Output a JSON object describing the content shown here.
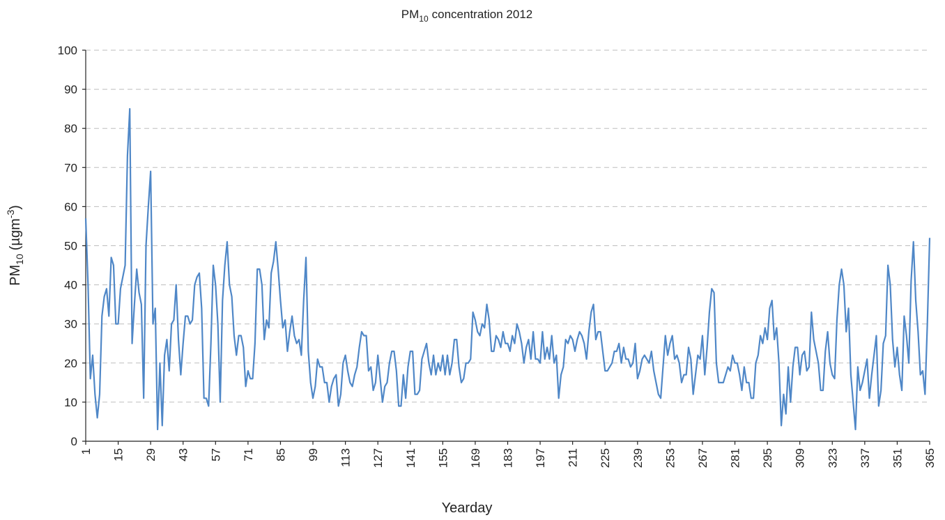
{
  "chart_data": {
    "type": "line",
    "title": {
      "main": "PM",
      "sub": "10",
      "rest": "concentration 2012"
    },
    "x_label": "Yearday",
    "y_label": {
      "main": "PM",
      "sub": "10",
      "rest": "(µgm",
      "sup": "-3",
      "end": ")"
    },
    "xlim": [
      1,
      365
    ],
    "ylim": [
      0,
      100
    ],
    "xticks": [
      1,
      15,
      29,
      43,
      57,
      71,
      85,
      99,
      113,
      127,
      141,
      155,
      169,
      183,
      197,
      211,
      225,
      239,
      253,
      267,
      281,
      295,
      309,
      323,
      337,
      351,
      365
    ],
    "yticks": [
      0,
      10,
      20,
      30,
      40,
      50,
      60,
      70,
      80,
      90,
      100
    ],
    "grid": true,
    "x": [
      1,
      2,
      3,
      4,
      5,
      6,
      7,
      8,
      9,
      10,
      11,
      12,
      13,
      14,
      15,
      16,
      17,
      18,
      19,
      20,
      21,
      22,
      23,
      24,
      25,
      26,
      27,
      28,
      29,
      30,
      31,
      32,
      33,
      34,
      35,
      36,
      37,
      38,
      39,
      40,
      41,
      42,
      43,
      44,
      45,
      46,
      47,
      48,
      49,
      50,
      51,
      52,
      53,
      54,
      55,
      56,
      57,
      58,
      59,
      60,
      61,
      62,
      63,
      64,
      65,
      66,
      67,
      68,
      69,
      70,
      71,
      72,
      73,
      74,
      75,
      76,
      77,
      78,
      79,
      80,
      81,
      82,
      83,
      84,
      85,
      86,
      87,
      88,
      89,
      90,
      91,
      92,
      93,
      94,
      95,
      96,
      97,
      98,
      99,
      100,
      101,
      102,
      103,
      104,
      105,
      106,
      107,
      108,
      109,
      110,
      111,
      112,
      113,
      114,
      115,
      116,
      117,
      118,
      119,
      120,
      121,
      122,
      123,
      124,
      125,
      126,
      127,
      128,
      129,
      130,
      131,
      132,
      133,
      134,
      135,
      136,
      137,
      138,
      139,
      140,
      141,
      142,
      143,
      144,
      145,
      146,
      147,
      148,
      149,
      150,
      151,
      152,
      153,
      154,
      155,
      156,
      157,
      158,
      159,
      160,
      161,
      162,
      163,
      164,
      165,
      166,
      167,
      168,
      169,
      170,
      171,
      172,
      173,
      174,
      175,
      176,
      177,
      178,
      179,
      180,
      181,
      182,
      183,
      184,
      185,
      186,
      187,
      188,
      189,
      190,
      191,
      192,
      193,
      194,
      195,
      196,
      197,
      198,
      199,
      200,
      201,
      202,
      203,
      204,
      205,
      206,
      207,
      208,
      209,
      210,
      211,
      212,
      213,
      214,
      215,
      216,
      217,
      218,
      219,
      220,
      221,
      222,
      223,
      224,
      225,
      226,
      227,
      228,
      229,
      230,
      231,
      232,
      233,
      234,
      235,
      236,
      237,
      238,
      239,
      240,
      241,
      242,
      243,
      244,
      245,
      246,
      247,
      248,
      249,
      250,
      251,
      252,
      253,
      254,
      255,
      256,
      257,
      258,
      259,
      260,
      261,
      262,
      263,
      264,
      265,
      266,
      267,
      268,
      269,
      270,
      271,
      272,
      273,
      274,
      275,
      276,
      277,
      278,
      279,
      280,
      281,
      282,
      283,
      284,
      285,
      286,
      287,
      288,
      289,
      290,
      291,
      292,
      293,
      294,
      295,
      296,
      297,
      298,
      299,
      300,
      301,
      302,
      303,
      304,
      305,
      306,
      307,
      308,
      309,
      310,
      311,
      312,
      313,
      314,
      315,
      316,
      317,
      318,
      319,
      320,
      321,
      322,
      323,
      324,
      325,
      326,
      327,
      328,
      329,
      330,
      331,
      332,
      333,
      334,
      335,
      336,
      337,
      338,
      339,
      340,
      341,
      342,
      343,
      344,
      345,
      346,
      347,
      348,
      349,
      350,
      351,
      352,
      353,
      354,
      355,
      356,
      357,
      358,
      359,
      360,
      361,
      362,
      363,
      364,
      365
    ],
    "series": [
      {
        "color": "#4f87c7",
        "values": [
          57,
          40,
          16,
          22,
          12,
          6,
          12,
          32,
          37,
          39,
          32,
          47,
          45,
          30,
          30,
          39,
          42,
          45,
          73,
          85,
          25,
          35,
          44,
          38,
          35,
          11,
          50,
          60,
          69,
          30,
          34,
          3,
          20,
          4,
          22,
          26,
          18,
          30,
          31,
          40,
          26,
          17,
          25,
          32,
          32,
          30,
          31,
          40,
          42,
          43,
          34,
          11,
          11,
          9,
          25,
          45,
          40,
          30,
          10,
          36,
          45,
          51,
          40,
          37,
          27,
          22,
          27,
          27,
          24,
          14,
          18,
          16,
          16,
          25,
          44,
          44,
          40,
          26,
          31,
          29,
          43,
          46,
          51,
          44,
          36,
          29,
          31,
          23,
          28,
          32,
          27,
          25,
          26,
          22,
          36,
          47,
          23,
          15,
          11,
          14,
          21,
          19,
          19,
          15,
          15,
          10,
          14,
          16,
          17,
          9,
          12,
          20,
          22,
          18,
          15,
          14,
          17,
          19,
          24,
          28,
          27,
          27,
          18,
          19,
          13,
          15,
          22,
          16,
          10,
          14,
          15,
          20,
          23,
          23,
          18,
          9,
          9,
          17,
          11,
          19,
          23,
          23,
          12,
          12,
          13,
          21,
          23,
          25,
          20,
          17,
          22,
          17,
          20,
          18,
          22,
          17,
          22,
          17,
          20,
          26,
          26,
          19,
          15,
          16,
          20,
          20,
          21,
          33,
          31,
          28,
          27,
          30,
          29,
          35,
          31,
          23,
          23,
          27,
          26,
          24,
          28,
          25,
          25,
          23,
          27,
          25,
          30,
          28,
          25,
          20,
          24,
          26,
          21,
          28,
          21,
          21,
          20,
          28,
          21,
          24,
          21,
          27,
          20,
          22,
          11,
          17,
          19,
          26,
          25,
          27,
          26,
          23,
          26,
          28,
          27,
          25,
          21,
          28,
          33,
          35,
          26,
          28,
          28,
          23,
          18,
          18,
          19,
          20,
          23,
          23,
          25,
          20,
          24,
          21,
          21,
          19,
          20,
          25,
          16,
          18,
          21,
          22,
          21,
          20,
          23,
          18,
          15,
          12,
          11,
          19,
          27,
          22,
          25,
          27,
          21,
          22,
          20,
          15,
          17,
          17,
          24,
          21,
          12,
          17,
          22,
          21,
          27,
          17,
          24,
          33,
          39,
          38,
          20,
          15,
          15,
          15,
          17,
          19,
          18,
          22,
          20,
          20,
          17,
          13,
          19,
          15,
          15,
          11,
          11,
          20,
          22,
          27,
          25,
          29,
          26,
          34,
          36,
          26,
          29,
          20,
          4,
          12,
          7,
          19,
          10,
          19,
          24,
          24,
          17,
          22,
          23,
          18,
          19,
          33,
          26,
          23,
          20,
          13,
          13,
          23,
          28,
          20,
          17,
          16,
          31,
          40,
          44,
          40,
          28,
          34,
          17,
          10,
          3,
          19,
          13,
          15,
          18,
          21,
          11,
          17,
          22,
          27,
          9,
          13,
          25,
          27,
          45,
          40,
          26,
          19,
          24,
          17,
          13,
          32,
          27,
          20,
          41,
          51,
          36,
          28,
          17,
          18,
          12,
          30,
          52
        ]
      }
    ]
  }
}
